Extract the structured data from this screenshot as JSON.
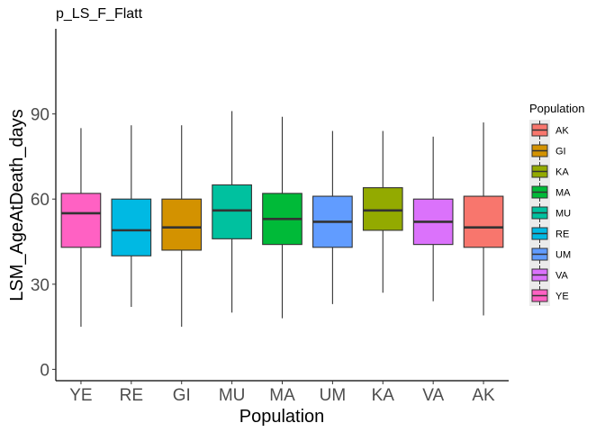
{
  "chart_data": {
    "type": "boxplot",
    "title": "p_LS_F_Flatt",
    "xlabel": "Population",
    "ylabel": "LSM_AgeAtDeath_days",
    "ylim": [
      -4,
      120
    ],
    "yticks": [
      0,
      30,
      60,
      90
    ],
    "grid": false,
    "legend": {
      "title": "Population",
      "placement": "right",
      "entries": [
        {
          "label": "AK",
          "color": "#F8766D"
        },
        {
          "label": "GI",
          "color": "#D39200"
        },
        {
          "label": "KA",
          "color": "#93AA00"
        },
        {
          "label": "MA",
          "color": "#00BA38"
        },
        {
          "label": "MU",
          "color": "#00C19F"
        },
        {
          "label": "RE",
          "color": "#00B9E3"
        },
        {
          "label": "UM",
          "color": "#619CFF"
        },
        {
          "label": "VA",
          "color": "#DB72FB"
        },
        {
          "label": "YE",
          "color": "#FF61C3"
        }
      ]
    },
    "categories": [
      "YE",
      "RE",
      "GI",
      "MU",
      "MA",
      "UM",
      "KA",
      "VA",
      "AK"
    ],
    "boxes": [
      {
        "category": "YE",
        "min": 15,
        "q1": 43,
        "median": 55,
        "q3": 62,
        "max": 85,
        "color": "#FF61C3"
      },
      {
        "category": "RE",
        "min": 22,
        "q1": 40,
        "median": 49,
        "q3": 60,
        "max": 86,
        "color": "#00B9E3"
      },
      {
        "category": "GI",
        "min": 15,
        "q1": 42,
        "median": 50,
        "q3": 60,
        "max": 86,
        "color": "#D39200"
      },
      {
        "category": "MU",
        "min": 20,
        "q1": 46,
        "median": 56,
        "q3": 65,
        "max": 91,
        "color": "#00C19F"
      },
      {
        "category": "MA",
        "min": 18,
        "q1": 44,
        "median": 53,
        "q3": 62,
        "max": 89,
        "color": "#00BA38"
      },
      {
        "category": "UM",
        "min": 23,
        "q1": 43,
        "median": 52,
        "q3": 61,
        "max": 84,
        "color": "#619CFF"
      },
      {
        "category": "KA",
        "min": 27,
        "q1": 49,
        "median": 56,
        "q3": 64,
        "max": 84,
        "color": "#93AA00"
      },
      {
        "category": "VA",
        "min": 24,
        "q1": 44,
        "median": 52,
        "q3": 60,
        "max": 82,
        "color": "#DB72FB"
      },
      {
        "category": "AK",
        "min": 19,
        "q1": 43,
        "median": 50,
        "q3": 61,
        "max": 87,
        "color": "#F8766D"
      }
    ]
  }
}
